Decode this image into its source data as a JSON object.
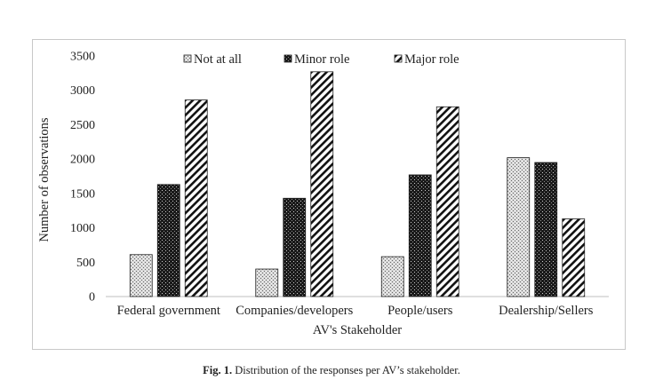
{
  "chart_data": {
    "type": "bar",
    "title": "",
    "xlabel": "AV's Stakeholder",
    "ylabel": "Number of observations",
    "ylim": [
      0,
      3500
    ],
    "yticks": [
      0,
      500,
      1000,
      1500,
      2000,
      2500,
      3000,
      3500
    ],
    "grid": false,
    "legend_position": "top",
    "categories": [
      "Federal government",
      "Companies/developers",
      "People/users",
      "Dealership/Sellers"
    ],
    "series": [
      {
        "name": "Not at all",
        "pattern": "crosshatch-light",
        "values": [
          610,
          400,
          580,
          2020
        ]
      },
      {
        "name": "Minor role",
        "pattern": "dotted-dark",
        "values": [
          1630,
          1430,
          1770,
          1950
        ]
      },
      {
        "name": "Major role",
        "pattern": "diagonal-stripes",
        "values": [
          2860,
          3270,
          2760,
          1130
        ]
      }
    ]
  },
  "caption": {
    "label": "Fig. 1.",
    "text": "Distribution of the responses per AV’s stakeholder."
  }
}
